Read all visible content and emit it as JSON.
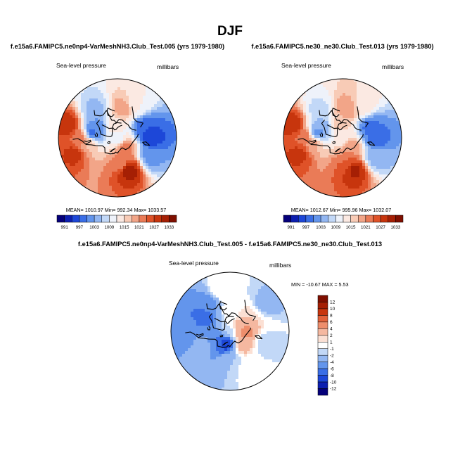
{
  "figure": {
    "title": "DJF"
  },
  "chart_data": [
    {
      "type": "heatmap",
      "projection": "north-polar-stereographic",
      "title": "f.e15a6.FAMIPC5.ne0np4-VarMeshNH3.Club_Test.005 (yrs 1979-1980)",
      "variable": "Sea-level pressure",
      "units": "millibars",
      "stats_text": "MEAN= 1010.97  Min= 992.34  Max= 1033.57",
      "mean": 1010.97,
      "min": 992.34,
      "max": 1033.57,
      "levels": [
        991,
        994,
        997,
        1000,
        1003,
        1006,
        1009,
        1012,
        1015,
        1018,
        1021,
        1024,
        1027,
        1030,
        1033
      ],
      "colorbar_labels": [
        "991",
        "997",
        "1003",
        "1009",
        "1015",
        "1021",
        "1027",
        "1033"
      ],
      "colors": [
        "#05007a",
        "#0d1fb0",
        "#1d47d8",
        "#3a6ee6",
        "#6395ec",
        "#93b7f2",
        "#c2d8f7",
        "#eef2fa",
        "#fbe9e2",
        "#f8cbb6",
        "#f2a588",
        "#ea7b57",
        "#df5228",
        "#c7350d",
        "#a51f04",
        "#7f0f00"
      ],
      "field": [
        {
          "lon": -10,
          "lat": 45,
          "value": 1024
        },
        {
          "lon": 0,
          "lat": 55,
          "value": 1018
        },
        {
          "lon": -25,
          "lat": 30,
          "value": 1030
        },
        {
          "lon": 10,
          "lat": 35,
          "value": 1028
        },
        {
          "lon": -35,
          "lat": 62,
          "value": 1000
        },
        {
          "lon": -20,
          "lat": 60,
          "value": 999
        },
        {
          "lon": 100,
          "lat": 50,
          "value": 1032
        },
        {
          "lon": 90,
          "lat": 60,
          "value": 1022
        },
        {
          "lon": 170,
          "lat": 50,
          "value": 995
        },
        {
          "lon": -170,
          "lat": 55,
          "value": 997
        },
        {
          "lon": 140,
          "lat": 45,
          "value": 1002
        },
        {
          "lon": 120,
          "lat": 75,
          "value": 1022
        },
        {
          "lon": -110,
          "lat": 55,
          "value": 1020
        },
        {
          "lon": -130,
          "lat": 45,
          "value": 1012
        },
        {
          "lon": -90,
          "lat": 75,
          "value": 1014
        },
        {
          "lon": 0,
          "lat": 90,
          "value": 1010
        },
        {
          "lon": -60,
          "lat": 48,
          "value": 1005
        }
      ]
    },
    {
      "type": "heatmap",
      "projection": "north-polar-stereographic",
      "title": "f.e15a6.FAMIPC5.ne30_ne30.Club_Test.013 (yrs 1979-1980)",
      "variable": "Sea-level pressure",
      "units": "millibars",
      "stats_text": "MEAN= 1012.67  Min= 995.96  Max= 1032.07",
      "mean": 1012.67,
      "min": 995.96,
      "max": 1032.07,
      "levels": [
        991,
        994,
        997,
        1000,
        1003,
        1006,
        1009,
        1012,
        1015,
        1018,
        1021,
        1024,
        1027,
        1030,
        1033
      ],
      "colorbar_labels": [
        "991",
        "997",
        "1003",
        "1009",
        "1015",
        "1021",
        "1027",
        "1033"
      ],
      "colors": [
        "#05007a",
        "#0d1fb0",
        "#1d47d8",
        "#3a6ee6",
        "#6395ec",
        "#93b7f2",
        "#c2d8f7",
        "#eef2fa",
        "#fbe9e2",
        "#f8cbb6",
        "#f2a588",
        "#ea7b57",
        "#df5228",
        "#c7350d",
        "#a51f04",
        "#7f0f00"
      ],
      "field": [
        {
          "lon": -10,
          "lat": 45,
          "value": 1024
        },
        {
          "lon": 0,
          "lat": 55,
          "value": 1019
        },
        {
          "lon": -25,
          "lat": 30,
          "value": 1029
        },
        {
          "lon": 10,
          "lat": 35,
          "value": 1028
        },
        {
          "lon": -35,
          "lat": 62,
          "value": 1003
        },
        {
          "lon": -20,
          "lat": 60,
          "value": 1002
        },
        {
          "lon": 100,
          "lat": 50,
          "value": 1031
        },
        {
          "lon": 90,
          "lat": 60,
          "value": 1024
        },
        {
          "lon": 170,
          "lat": 50,
          "value": 998
        },
        {
          "lon": -170,
          "lat": 55,
          "value": 999
        },
        {
          "lon": 140,
          "lat": 45,
          "value": 1004
        },
        {
          "lon": 120,
          "lat": 75,
          "value": 1021
        },
        {
          "lon": -110,
          "lat": 55,
          "value": 1021
        },
        {
          "lon": -130,
          "lat": 45,
          "value": 1014
        },
        {
          "lon": -90,
          "lat": 75,
          "value": 1016
        },
        {
          "lon": 0,
          "lat": 90,
          "value": 1012
        },
        {
          "lon": -60,
          "lat": 48,
          "value": 1008
        }
      ]
    },
    {
      "type": "heatmap",
      "projection": "north-polar-stereographic",
      "title": "f.e15a6.FAMIPC5.ne0np4-VarMeshNH3.Club_Test.005 - f.e15a6.FAMIPC5.ne30_ne30.Club_Test.013",
      "variable": "Sea-level pressure",
      "units": "millibars",
      "stats_text": "MIN = -10.67  MAX =   5.53",
      "min": -10.67,
      "max": 5.53,
      "levels": [
        -12,
        -10,
        -8,
        -6,
        -4,
        -2,
        -1,
        1,
        2,
        4,
        6,
        8,
        10,
        12
      ],
      "colorbar_labels": [
        "12",
        "10",
        "8",
        "6",
        "4",
        "2",
        "1",
        "-1",
        "-2",
        "-4",
        "-6",
        "-8",
        "-10",
        "-12"
      ],
      "colors": [
        "#05007a",
        "#0d1fb0",
        "#1d47d8",
        "#3a6ee6",
        "#6395ec",
        "#93b7f2",
        "#c2d8f7",
        "#ffffff",
        "#fbe0d4",
        "#f5b8a0",
        "#ee8e6c",
        "#e2623a",
        "#c7350d",
        "#a51f04",
        "#7f0f00"
      ],
      "field": [
        {
          "lon": 0,
          "lat": 90,
          "value": -1.5
        },
        {
          "lon": 180,
          "lat": 78,
          "value": 4
        },
        {
          "lon": 165,
          "lat": 72,
          "value": 5
        },
        {
          "lon": -150,
          "lat": 65,
          "value": 2
        },
        {
          "lon": 125,
          "lat": 68,
          "value": 3
        },
        {
          "lon": -100,
          "lat": 65,
          "value": -0.5
        },
        {
          "lon": -60,
          "lat": 50,
          "value": -5
        },
        {
          "lon": -40,
          "lat": 55,
          "value": -7
        },
        {
          "lon": -10,
          "lat": 40,
          "value": -5
        },
        {
          "lon": 20,
          "lat": 55,
          "value": -3
        },
        {
          "lon": 30,
          "lat": 70,
          "value": -6
        },
        {
          "lon": 60,
          "lat": 75,
          "value": -10
        },
        {
          "lon": 80,
          "lat": 55,
          "value": -2
        },
        {
          "lon": 110,
          "lat": 40,
          "value": 0
        },
        {
          "lon": 150,
          "lat": 45,
          "value": -2
        },
        {
          "lon": -150,
          "lat": 35,
          "value": -3
        },
        {
          "lon": -120,
          "lat": 35,
          "value": -1
        },
        {
          "lon": -90,
          "lat": 40,
          "value": 0.5
        }
      ]
    }
  ]
}
